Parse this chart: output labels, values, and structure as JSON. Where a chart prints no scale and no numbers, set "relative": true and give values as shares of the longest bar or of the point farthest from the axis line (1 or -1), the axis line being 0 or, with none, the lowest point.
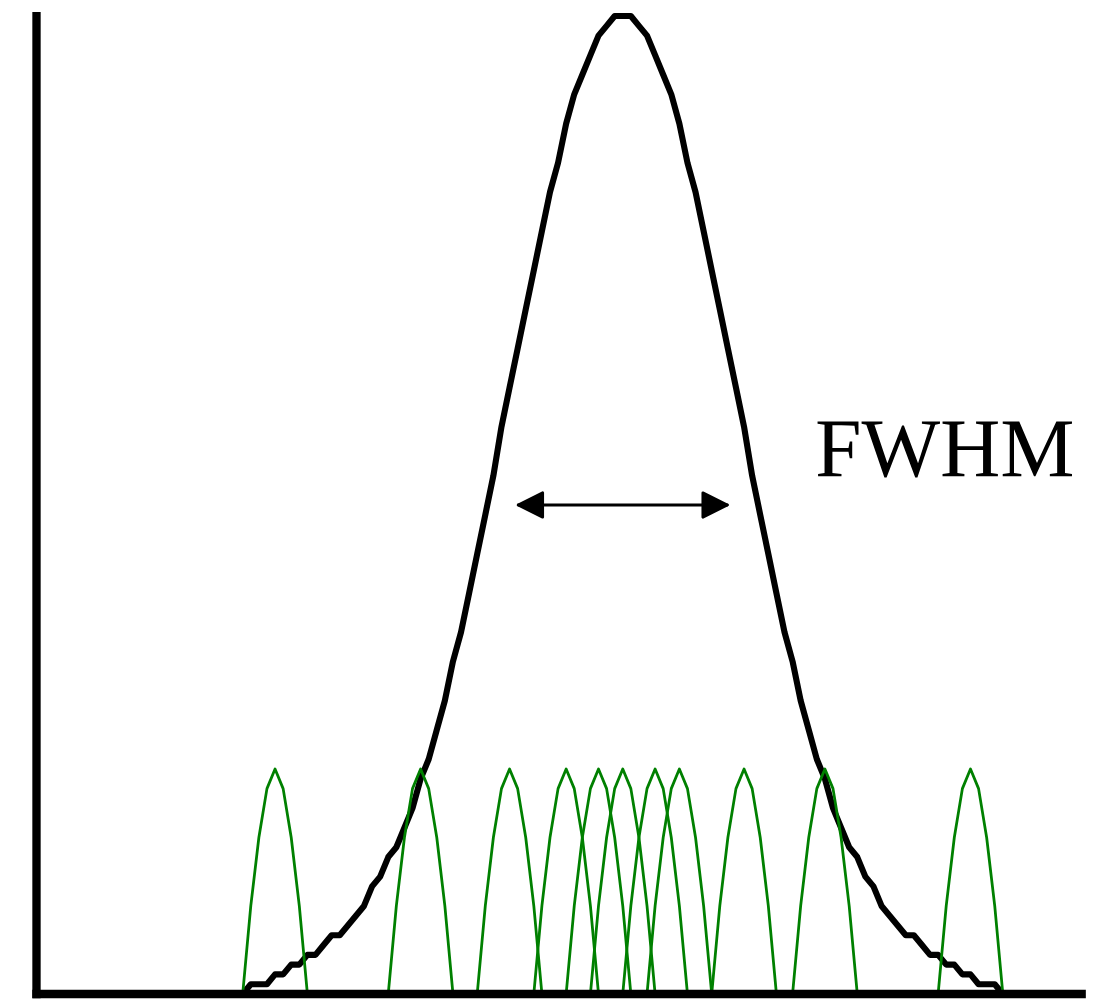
{
  "chart_data": {
    "type": "line",
    "relative": true,
    "grid": false,
    "line_style": "solid",
    "annotations": [
      "FWHM"
    ],
    "categories": [
      null,
      null,
      null,
      null,
      null,
      null,
      null,
      null,
      null,
      null,
      null,
      null,
      null,
      null,
      null,
      null,
      null,
      null,
      null,
      null,
      null,
      null,
      null,
      null,
      null,
      null,
      null,
      null,
      null,
      null,
      null,
      null,
      null,
      null,
      null,
      null,
      null,
      null,
      null,
      null,
      null,
      null,
      null,
      null,
      null,
      null,
      null,
      null,
      null,
      null,
      null,
      null,
      null,
      null,
      null,
      null,
      null,
      null,
      null,
      null,
      null,
      null,
      null,
      null,
      null,
      null,
      null,
      null,
      null,
      null,
      null,
      null,
      null,
      null,
      null,
      null,
      null,
      null,
      null,
      null,
      null,
      null,
      null,
      null,
      null,
      null,
      null,
      null,
      null,
      null,
      null,
      null,
      null,
      null,
      null,
      null,
      null,
      null,
      null,
      null,
      null,
      null,
      null,
      null,
      null,
      null,
      null,
      null,
      null,
      null,
      null,
      null,
      null,
      null,
      null,
      null,
      null,
      null,
      null,
      null,
      null,
      null,
      null,
      null,
      null,
      null,
      null,
      null,
      null
    ],
    "series": [
      {
        "color": "#000000",
        "values": [
          null,
          null,
          null,
          null,
          null,
          null,
          null,
          null,
          null,
          null,
          null,
          null,
          null,
          null,
          null,
          null,
          null,
          null,
          null,
          null,
          null,
          null,
          0,
          0,
          0,
          0,
          0.01,
          0.01,
          0.01,
          0.02,
          0.02,
          0.03,
          0.03,
          0.04,
          0.04,
          0.05,
          0.06,
          0.06,
          0.07,
          0.08,
          0.09,
          0.11,
          0.12,
          0.14,
          0.15,
          0.17,
          0.19,
          0.22,
          0.24,
          0.27,
          0.3,
          0.34,
          0.37,
          0.41,
          0.45,
          0.49,
          0.53,
          0.58,
          0.62,
          0.66,
          0.7,
          0.74,
          0.78,
          0.82,
          0.85,
          0.89,
          0.92,
          0.94,
          0.96,
          0.98,
          0.99,
          1,
          1,
          1,
          0.99,
          0.98,
          0.96,
          0.94,
          0.92,
          0.89,
          0.85,
          0.82,
          0.78,
          0.74,
          0.7,
          0.66,
          0.62,
          0.58,
          0.53,
          0.49,
          0.45,
          0.41,
          0.37,
          0.34,
          0.3,
          0.27,
          0.24,
          0.22,
          0.19,
          0.17,
          0.15,
          0.14,
          0.12,
          0.11,
          0.09,
          0.08,
          0.07,
          0.06,
          0.06,
          0.05,
          0.04,
          0.04,
          0.03,
          0.03,
          0.02,
          0.02,
          0.01,
          0.01,
          0.01,
          0,
          0,
          0,
          0,
          null,
          null,
          null,
          null,
          null,
          null
        ]
      },
      {
        "color": "#008000",
        "values": [
          null,
          null,
          null,
          null,
          null,
          null,
          null,
          null,
          null,
          null,
          null,
          null,
          null,
          null,
          null,
          null,
          null,
          null,
          null,
          null,
          null,
          null,
          null,
          null,
          null,
          0,
          0.09,
          0.16,
          0.21,
          0.23,
          0.21,
          0.16,
          0.09,
          0,
          null,
          null,
          null,
          null,
          null,
          null,
          null,
          null,
          null,
          null,
          null,
          null,
          null,
          null,
          null,
          null,
          null,
          null,
          null,
          null,
          null,
          null,
          null,
          null,
          null,
          null,
          null,
          null,
          null,
          null,
          null,
          null,
          null,
          null,
          null,
          null,
          null,
          null,
          null,
          null,
          null,
          null,
          null,
          null,
          null,
          null,
          null,
          null,
          null,
          null,
          null,
          null,
          null,
          null,
          null,
          null,
          null,
          null,
          null,
          null,
          null,
          null,
          null,
          null,
          null,
          null,
          null,
          null,
          null,
          null,
          null,
          null,
          null,
          null,
          null,
          null,
          null,
          null,
          null,
          null,
          null,
          null,
          null,
          null,
          null,
          null,
          null,
          null,
          null,
          null,
          null,
          null,
          null,
          null,
          null
        ]
      },
      {
        "color": "#008000",
        "values": [
          null,
          null,
          null,
          null,
          null,
          null,
          null,
          null,
          null,
          null,
          null,
          null,
          null,
          null,
          null,
          null,
          null,
          null,
          null,
          null,
          null,
          null,
          null,
          null,
          null,
          null,
          null,
          null,
          null,
          null,
          null,
          null,
          null,
          null,
          null,
          null,
          null,
          null,
          null,
          null,
          null,
          null,
          null,
          0,
          0.09,
          0.16,
          0.21,
          0.23,
          0.21,
          0.16,
          0.09,
          0,
          null,
          null,
          null,
          null,
          null,
          null,
          null,
          null,
          null,
          null,
          null,
          null,
          null,
          null,
          null,
          null,
          null,
          null,
          null,
          null,
          null,
          null,
          null,
          null,
          null,
          null,
          null,
          null,
          null,
          null,
          null,
          null,
          null,
          null,
          null,
          null,
          null,
          null,
          null,
          null,
          null,
          null,
          null,
          null,
          null,
          null,
          null,
          null,
          null,
          null,
          null,
          null,
          null,
          null,
          null,
          null,
          null,
          null,
          null,
          null,
          null,
          null,
          null,
          null,
          null,
          null,
          null,
          null,
          null,
          null,
          null,
          null,
          null,
          null,
          null,
          null,
          null
        ]
      },
      {
        "color": "#008000",
        "values": [
          null,
          null,
          null,
          null,
          null,
          null,
          null,
          null,
          null,
          null,
          null,
          null,
          null,
          null,
          null,
          null,
          null,
          null,
          null,
          null,
          null,
          null,
          null,
          null,
          null,
          null,
          null,
          null,
          null,
          null,
          null,
          null,
          null,
          null,
          null,
          null,
          null,
          null,
          null,
          null,
          null,
          null,
          null,
          null,
          null,
          null,
          null,
          null,
          null,
          null,
          null,
          null,
          null,
          null,
          0,
          0.09,
          0.16,
          0.21,
          0.23,
          0.21,
          0.16,
          0.09,
          0,
          null,
          null,
          null,
          null,
          null,
          null,
          null,
          null,
          null,
          null,
          null,
          null,
          null,
          null,
          null,
          null,
          null,
          null,
          null,
          null,
          null,
          null,
          null,
          null,
          null,
          null,
          null,
          null,
          null,
          null,
          null,
          null,
          null,
          null,
          null,
          null,
          null,
          null,
          null,
          null,
          null,
          null,
          null,
          null,
          null,
          null,
          null,
          null,
          null,
          null,
          null,
          null,
          null,
          null,
          null,
          null,
          null,
          null,
          null,
          null,
          null,
          null,
          null,
          null,
          null,
          null
        ]
      },
      {
        "color": "#008000",
        "values": [
          null,
          null,
          null,
          null,
          null,
          null,
          null,
          null,
          null,
          null,
          null,
          null,
          null,
          null,
          null,
          null,
          null,
          null,
          null,
          null,
          null,
          null,
          null,
          null,
          null,
          null,
          null,
          null,
          null,
          null,
          null,
          null,
          null,
          null,
          null,
          null,
          null,
          null,
          null,
          null,
          null,
          null,
          null,
          null,
          null,
          null,
          null,
          null,
          null,
          null,
          null,
          null,
          null,
          null,
          null,
          null,
          null,
          null,
          null,
          null,
          null,
          0,
          0.09,
          0.16,
          0.21,
          0.23,
          0.21,
          0.16,
          0.09,
          0,
          null,
          null,
          null,
          null,
          null,
          null,
          null,
          null,
          null,
          null,
          null,
          null,
          null,
          null,
          null,
          null,
          null,
          null,
          null,
          null,
          null,
          null,
          null,
          null,
          null,
          null,
          null,
          null,
          null,
          null,
          null,
          null,
          null,
          null,
          null,
          null,
          null,
          null,
          null,
          null,
          null,
          null,
          null,
          null,
          null,
          null,
          null,
          null,
          null,
          null,
          null,
          null,
          null,
          null,
          null,
          null,
          null,
          null,
          null
        ]
      },
      {
        "color": "#008000",
        "values": [
          null,
          null,
          null,
          null,
          null,
          null,
          null,
          null,
          null,
          null,
          null,
          null,
          null,
          null,
          null,
          null,
          null,
          null,
          null,
          null,
          null,
          null,
          null,
          null,
          null,
          null,
          null,
          null,
          null,
          null,
          null,
          null,
          null,
          null,
          null,
          null,
          null,
          null,
          null,
          null,
          null,
          null,
          null,
          null,
          null,
          null,
          null,
          null,
          null,
          null,
          null,
          null,
          null,
          null,
          null,
          null,
          null,
          null,
          null,
          null,
          null,
          null,
          null,
          null,
          null,
          0,
          0.09,
          0.16,
          0.21,
          0.23,
          0.21,
          0.16,
          0.09,
          0,
          null,
          null,
          null,
          null,
          null,
          null,
          null,
          null,
          null,
          null,
          null,
          null,
          null,
          null,
          null,
          null,
          null,
          null,
          null,
          null,
          null,
          null,
          null,
          null,
          null,
          null,
          null,
          null,
          null,
          null,
          null,
          null,
          null,
          null,
          null,
          null,
          null,
          null,
          null,
          null,
          null,
          null,
          null,
          null,
          null,
          null,
          null,
          null,
          null,
          null,
          null,
          null,
          null,
          null,
          null
        ]
      },
      {
        "color": "#008000",
        "values": [
          null,
          null,
          null,
          null,
          null,
          null,
          null,
          null,
          null,
          null,
          null,
          null,
          null,
          null,
          null,
          null,
          null,
          null,
          null,
          null,
          null,
          null,
          null,
          null,
          null,
          null,
          null,
          null,
          null,
          null,
          null,
          null,
          null,
          null,
          null,
          null,
          null,
          null,
          null,
          null,
          null,
          null,
          null,
          null,
          null,
          null,
          null,
          null,
          null,
          null,
          null,
          null,
          null,
          null,
          null,
          null,
          null,
          null,
          null,
          null,
          null,
          null,
          null,
          null,
          null,
          null,
          null,
          null,
          0,
          0.09,
          0.16,
          0.21,
          0.23,
          0.21,
          0.16,
          0.09,
          0,
          null,
          null,
          null,
          null,
          null,
          null,
          null,
          null,
          null,
          null,
          null,
          null,
          null,
          null,
          null,
          null,
          null,
          null,
          null,
          null,
          null,
          null,
          null,
          null,
          null,
          null,
          null,
          null,
          null,
          null,
          null,
          null,
          null,
          null,
          null,
          null,
          null,
          null,
          null,
          null,
          null,
          null,
          null,
          null,
          null,
          null,
          null,
          null,
          null,
          null,
          null,
          null
        ]
      },
      {
        "color": "#008000",
        "values": [
          null,
          null,
          null,
          null,
          null,
          null,
          null,
          null,
          null,
          null,
          null,
          null,
          null,
          null,
          null,
          null,
          null,
          null,
          null,
          null,
          null,
          null,
          null,
          null,
          null,
          null,
          null,
          null,
          null,
          null,
          null,
          null,
          null,
          null,
          null,
          null,
          null,
          null,
          null,
          null,
          null,
          null,
          null,
          null,
          null,
          null,
          null,
          null,
          null,
          null,
          null,
          null,
          null,
          null,
          null,
          null,
          null,
          null,
          null,
          null,
          null,
          null,
          null,
          null,
          null,
          null,
          null,
          null,
          null,
          null,
          null,
          null,
          0,
          0.09,
          0.16,
          0.21,
          0.23,
          0.21,
          0.16,
          0.09,
          0,
          null,
          null,
          null,
          null,
          null,
          null,
          null,
          null,
          null,
          null,
          null,
          null,
          null,
          null,
          null,
          null,
          null,
          null,
          null,
          null,
          null,
          null,
          null,
          null,
          null,
          null,
          null,
          null,
          null,
          null,
          null,
          null,
          null,
          null,
          null,
          null,
          null,
          null,
          null,
          null,
          null,
          null,
          null,
          null,
          null,
          null,
          null,
          null
        ]
      },
      {
        "color": "#008000",
        "values": [
          null,
          null,
          null,
          null,
          null,
          null,
          null,
          null,
          null,
          null,
          null,
          null,
          null,
          null,
          null,
          null,
          null,
          null,
          null,
          null,
          null,
          null,
          null,
          null,
          null,
          null,
          null,
          null,
          null,
          null,
          null,
          null,
          null,
          null,
          null,
          null,
          null,
          null,
          null,
          null,
          null,
          null,
          null,
          null,
          null,
          null,
          null,
          null,
          null,
          null,
          null,
          null,
          null,
          null,
          null,
          null,
          null,
          null,
          null,
          null,
          null,
          null,
          null,
          null,
          null,
          null,
          null,
          null,
          null,
          null,
          null,
          null,
          null,
          null,
          null,
          0,
          0.09,
          0.16,
          0.21,
          0.23,
          0.21,
          0.16,
          0.09,
          0,
          null,
          null,
          null,
          null,
          null,
          null,
          null,
          null,
          null,
          null,
          null,
          null,
          null,
          null,
          null,
          null,
          null,
          null,
          null,
          null,
          null,
          null,
          null,
          null,
          null,
          null,
          null,
          null,
          null,
          null,
          null,
          null,
          null,
          null,
          null,
          null,
          null,
          null,
          null,
          null,
          null,
          null,
          null,
          null,
          null
        ]
      },
      {
        "color": "#008000",
        "values": [
          null,
          null,
          null,
          null,
          null,
          null,
          null,
          null,
          null,
          null,
          null,
          null,
          null,
          null,
          null,
          null,
          null,
          null,
          null,
          null,
          null,
          null,
          null,
          null,
          null,
          null,
          null,
          null,
          null,
          null,
          null,
          null,
          null,
          null,
          null,
          null,
          null,
          null,
          null,
          null,
          null,
          null,
          null,
          null,
          null,
          null,
          null,
          null,
          null,
          null,
          null,
          null,
          null,
          null,
          null,
          null,
          null,
          null,
          null,
          null,
          null,
          null,
          null,
          null,
          null,
          null,
          null,
          null,
          null,
          null,
          null,
          null,
          null,
          null,
          null,
          null,
          null,
          null,
          null,
          null,
          null,
          null,
          null,
          0,
          0.09,
          0.16,
          0.21,
          0.23,
          0.21,
          0.16,
          0.09,
          0,
          null,
          null,
          null,
          null,
          null,
          null,
          null,
          null,
          null,
          null,
          null,
          null,
          null,
          null,
          null,
          null,
          null,
          null,
          null,
          null,
          null,
          null,
          null,
          null,
          null,
          null,
          null,
          null,
          null,
          null,
          null,
          null,
          null,
          null,
          null,
          null,
          null
        ]
      },
      {
        "color": "#008000",
        "values": [
          null,
          null,
          null,
          null,
          null,
          null,
          null,
          null,
          null,
          null,
          null,
          null,
          null,
          null,
          null,
          null,
          null,
          null,
          null,
          null,
          null,
          null,
          null,
          null,
          null,
          null,
          null,
          null,
          null,
          null,
          null,
          null,
          null,
          null,
          null,
          null,
          null,
          null,
          null,
          null,
          null,
          null,
          null,
          null,
          null,
          null,
          null,
          null,
          null,
          null,
          null,
          null,
          null,
          null,
          null,
          null,
          null,
          null,
          null,
          null,
          null,
          null,
          null,
          null,
          null,
          null,
          null,
          null,
          null,
          null,
          null,
          null,
          null,
          null,
          null,
          null,
          null,
          null,
          null,
          null,
          null,
          null,
          null,
          null,
          null,
          null,
          null,
          null,
          null,
          null,
          null,
          null,
          null,
          0,
          0.09,
          0.16,
          0.21,
          0.23,
          0.21,
          0.16,
          0.09,
          0,
          null,
          null,
          null,
          null,
          null,
          null,
          null,
          null,
          null,
          null,
          null,
          null,
          null,
          null,
          null,
          null,
          null,
          null,
          null,
          null,
          null,
          null,
          null,
          null,
          null,
          null,
          null
        ]
      },
      {
        "color": "#008000",
        "values": [
          null,
          null,
          null,
          null,
          null,
          null,
          null,
          null,
          null,
          null,
          null,
          null,
          null,
          null,
          null,
          null,
          null,
          null,
          null,
          null,
          null,
          null,
          null,
          null,
          null,
          null,
          null,
          null,
          null,
          null,
          null,
          null,
          null,
          null,
          null,
          null,
          null,
          null,
          null,
          null,
          null,
          null,
          null,
          null,
          null,
          null,
          null,
          null,
          null,
          null,
          null,
          null,
          null,
          null,
          null,
          null,
          null,
          null,
          null,
          null,
          null,
          null,
          null,
          null,
          null,
          null,
          null,
          null,
          null,
          null,
          null,
          null,
          null,
          null,
          null,
          null,
          null,
          null,
          null,
          null,
          null,
          null,
          null,
          null,
          null,
          null,
          null,
          null,
          null,
          null,
          null,
          null,
          null,
          null,
          null,
          null,
          null,
          null,
          null,
          null,
          null,
          null,
          null,
          null,
          null,
          null,
          null,
          null,
          null,
          null,
          null,
          0,
          0.09,
          0.16,
          0.21,
          0.23,
          0.21,
          0.16,
          0.09,
          0,
          null,
          null,
          null,
          null,
          null,
          null,
          null,
          null,
          null
        ]
      }
    ]
  }
}
